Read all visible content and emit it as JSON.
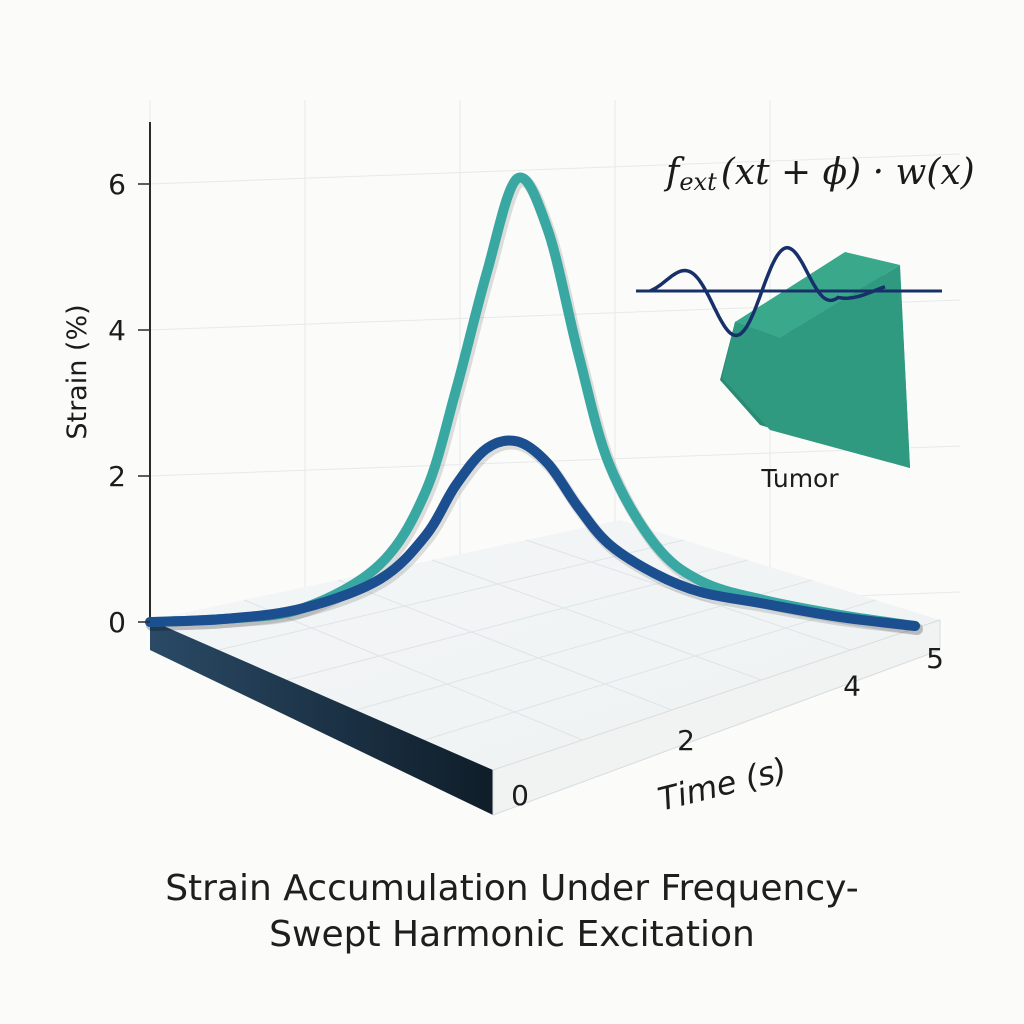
{
  "chart_data": {
    "type": "line",
    "title": "Strain Accumulation Under Frequency-Swept Harmonic Excitation",
    "title_lines": [
      "Strain Accumulation Under Frequency-",
      "Swept Harmonic Excitation"
    ],
    "ylabel": "Strain (%)",
    "xlabel": "Time (s)",
    "y_ticks": [
      0,
      2,
      4,
      6
    ],
    "x_ticks": [
      0,
      2,
      4,
      5
    ],
    "ylim": [
      0,
      6.5
    ],
    "xlim": [
      0,
      5
    ],
    "grid": true,
    "series": [
      {
        "color": "#3aa8a2",
        "x": [
          0,
          0.5,
          1.0,
          1.5,
          1.8,
          2.0,
          2.2,
          2.4,
          2.6,
          2.8,
          3.0,
          3.3,
          3.6,
          4.0,
          4.5,
          5.0
        ],
        "y": [
          0,
          0.05,
          0.2,
          0.8,
          1.8,
          3.2,
          4.8,
          6.1,
          5.4,
          3.7,
          2.2,
          1.1,
          0.6,
          0.35,
          0.15,
          0
        ]
      },
      {
        "color": "#1c4f8f",
        "x": [
          0,
          0.5,
          1.0,
          1.5,
          1.8,
          2.0,
          2.2,
          2.4,
          2.6,
          2.8,
          3.0,
          3.3,
          3.6,
          4.0,
          4.5,
          5.0
        ],
        "y": [
          0,
          0.05,
          0.2,
          0.6,
          1.2,
          1.9,
          2.4,
          2.5,
          2.2,
          1.6,
          1.1,
          0.7,
          0.45,
          0.3,
          0.12,
          0
        ]
      }
    ],
    "annotations": {
      "formula": "f",
      "formula_sub": "ext",
      "formula_rest": "(xt + ϕ) · w(x)",
      "tumor_label": "Tumor"
    }
  },
  "colors": {
    "tumor": "#2f9a80",
    "tumor_dark": "#237a66",
    "wave": "#18306a",
    "base": "#17293a"
  }
}
